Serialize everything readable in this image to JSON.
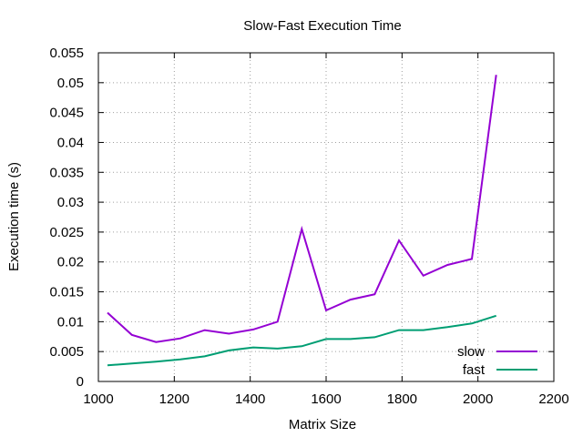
{
  "chart_data": {
    "type": "line",
    "title": "Slow-Fast Execution Time",
    "xlabel": "Matrix Size",
    "ylabel": "Execution time (s)",
    "xlim": [
      1000,
      2200
    ],
    "ylim": [
      0,
      0.055
    ],
    "xticks": [
      1000,
      1200,
      1400,
      1600,
      1800,
      2000,
      2200
    ],
    "xtick_labels": [
      "1000",
      "1200",
      "1400",
      "1600",
      "1800",
      "2000",
      "2200"
    ],
    "yticks": [
      0,
      0.005,
      0.01,
      0.015,
      0.02,
      0.025,
      0.03,
      0.035,
      0.04,
      0.045,
      0.05,
      0.055
    ],
    "ytick_labels": [
      "0",
      "0.005",
      "0.01",
      "0.015",
      "0.02",
      "0.025",
      "0.03",
      "0.035",
      "0.04",
      "0.045",
      "0.05",
      "0.055"
    ],
    "grid": true,
    "legend_position": "bottom-right",
    "x": [
      1024,
      1088,
      1152,
      1216,
      1280,
      1344,
      1408,
      1472,
      1536,
      1600,
      1664,
      1728,
      1792,
      1856,
      1920,
      1984,
      2048
    ],
    "series": [
      {
        "name": "slow",
        "color": "#9400d3",
        "values": [
          0.0115,
          0.0078,
          0.0066,
          0.0072,
          0.0086,
          0.008,
          0.0087,
          0.01,
          0.0255,
          0.0119,
          0.0137,
          0.0146,
          0.0236,
          0.0177,
          0.0195,
          0.0205,
          0.0513
        ]
      },
      {
        "name": "fast",
        "color": "#009e73",
        "values": [
          0.0027,
          0.003,
          0.0033,
          0.0037,
          0.0042,
          0.0052,
          0.0057,
          0.0055,
          0.0059,
          0.0071,
          0.0071,
          0.0074,
          0.0086,
          0.0086,
          0.0091,
          0.0097,
          0.011
        ]
      }
    ]
  }
}
